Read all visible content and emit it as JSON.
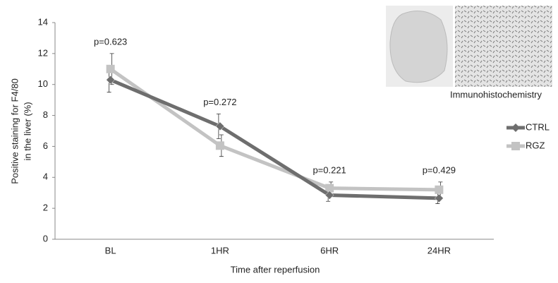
{
  "chart_data": {
    "type": "line",
    "ylabel": [
      "Positive staining for F4/80",
      "in the liver (%)"
    ],
    "xlabel": "Time after reperfusion",
    "categories": [
      "BL",
      "1HR",
      "6HR",
      "24HR"
    ],
    "series": [
      {
        "name": "CTRL",
        "color": "#6e6e6e",
        "marker": "diamond",
        "values": [
          10.3,
          7.3,
          2.85,
          2.65
        ],
        "errors": [
          0.8,
          0.8,
          0.4,
          0.35
        ]
      },
      {
        "name": "RGZ",
        "color": "#c3c3c3",
        "marker": "square",
        "values": [
          11.0,
          6.05,
          3.3,
          3.2
        ],
        "errors": [
          1.0,
          0.7,
          0.4,
          0.5
        ]
      }
    ],
    "p_values": [
      "p=0.623",
      "p=0.272",
      "p=0.221",
      "p=0.429"
    ],
    "image_caption": "Immunohistochemistry",
    "ylim": [
      0,
      14
    ],
    "yticks": [
      0,
      2,
      4,
      6,
      8,
      10,
      12,
      14
    ],
    "grid": false,
    "legend": "right"
  }
}
